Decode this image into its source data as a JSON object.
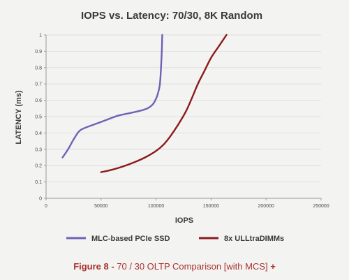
{
  "chart_data": {
    "type": "line",
    "title": "IOPS vs. Latency: 70/30, 8K Random",
    "xlabel": "IOPS",
    "ylabel": "LATENCY (ms)",
    "xlim": [
      0,
      250000
    ],
    "ylim": [
      0,
      1
    ],
    "x_ticks": [
      0,
      50000,
      100000,
      150000,
      200000,
      250000
    ],
    "x_tick_labels": [
      "0",
      "50000",
      "100000",
      "150000",
      "200000",
      "250000"
    ],
    "y_ticks": [
      0,
      0.1,
      0.2,
      0.3,
      0.4,
      0.5,
      0.6,
      0.7,
      0.8,
      0.9,
      1
    ],
    "y_tick_labels": [
      "0",
      "0.1",
      "0.2",
      "0.3",
      "0.4",
      "0.5",
      "0.6",
      "0.7",
      "0.8",
      "0.9",
      "1"
    ],
    "grid": "horizontal",
    "legend_position": "bottom",
    "series": [
      {
        "name": "MLC-based PCIe SSD",
        "color": "#6b63b5",
        "points": [
          [
            15000,
            0.25
          ],
          [
            20000,
            0.3
          ],
          [
            25000,
            0.36
          ],
          [
            30000,
            0.41
          ],
          [
            35000,
            0.43
          ],
          [
            45000,
            0.455
          ],
          [
            55000,
            0.48
          ],
          [
            65000,
            0.505
          ],
          [
            75000,
            0.52
          ],
          [
            85000,
            0.535
          ],
          [
            92000,
            0.55
          ],
          [
            97000,
            0.575
          ],
          [
            100000,
            0.61
          ],
          [
            102000,
            0.65
          ],
          [
            103500,
            0.7
          ],
          [
            104500,
            0.8
          ],
          [
            105200,
            0.9
          ],
          [
            105600,
            1.0
          ]
        ]
      },
      {
        "name": "8x ULLtraDIMMs",
        "color": "#8b1a1a",
        "points": [
          [
            50000,
            0.16
          ],
          [
            60000,
            0.175
          ],
          [
            70000,
            0.195
          ],
          [
            80000,
            0.22
          ],
          [
            90000,
            0.25
          ],
          [
            100000,
            0.29
          ],
          [
            107000,
            0.33
          ],
          [
            113000,
            0.38
          ],
          [
            120000,
            0.45
          ],
          [
            127000,
            0.53
          ],
          [
            133000,
            0.62
          ],
          [
            138000,
            0.7
          ],
          [
            144000,
            0.78
          ],
          [
            150000,
            0.86
          ],
          [
            157000,
            0.93
          ],
          [
            164000,
            1.0
          ]
        ]
      }
    ]
  },
  "caption": {
    "figure": "Figure 8 -",
    "text": " 70 / 30 OLTP Comparison [with MCS] ",
    "plus": "+"
  }
}
